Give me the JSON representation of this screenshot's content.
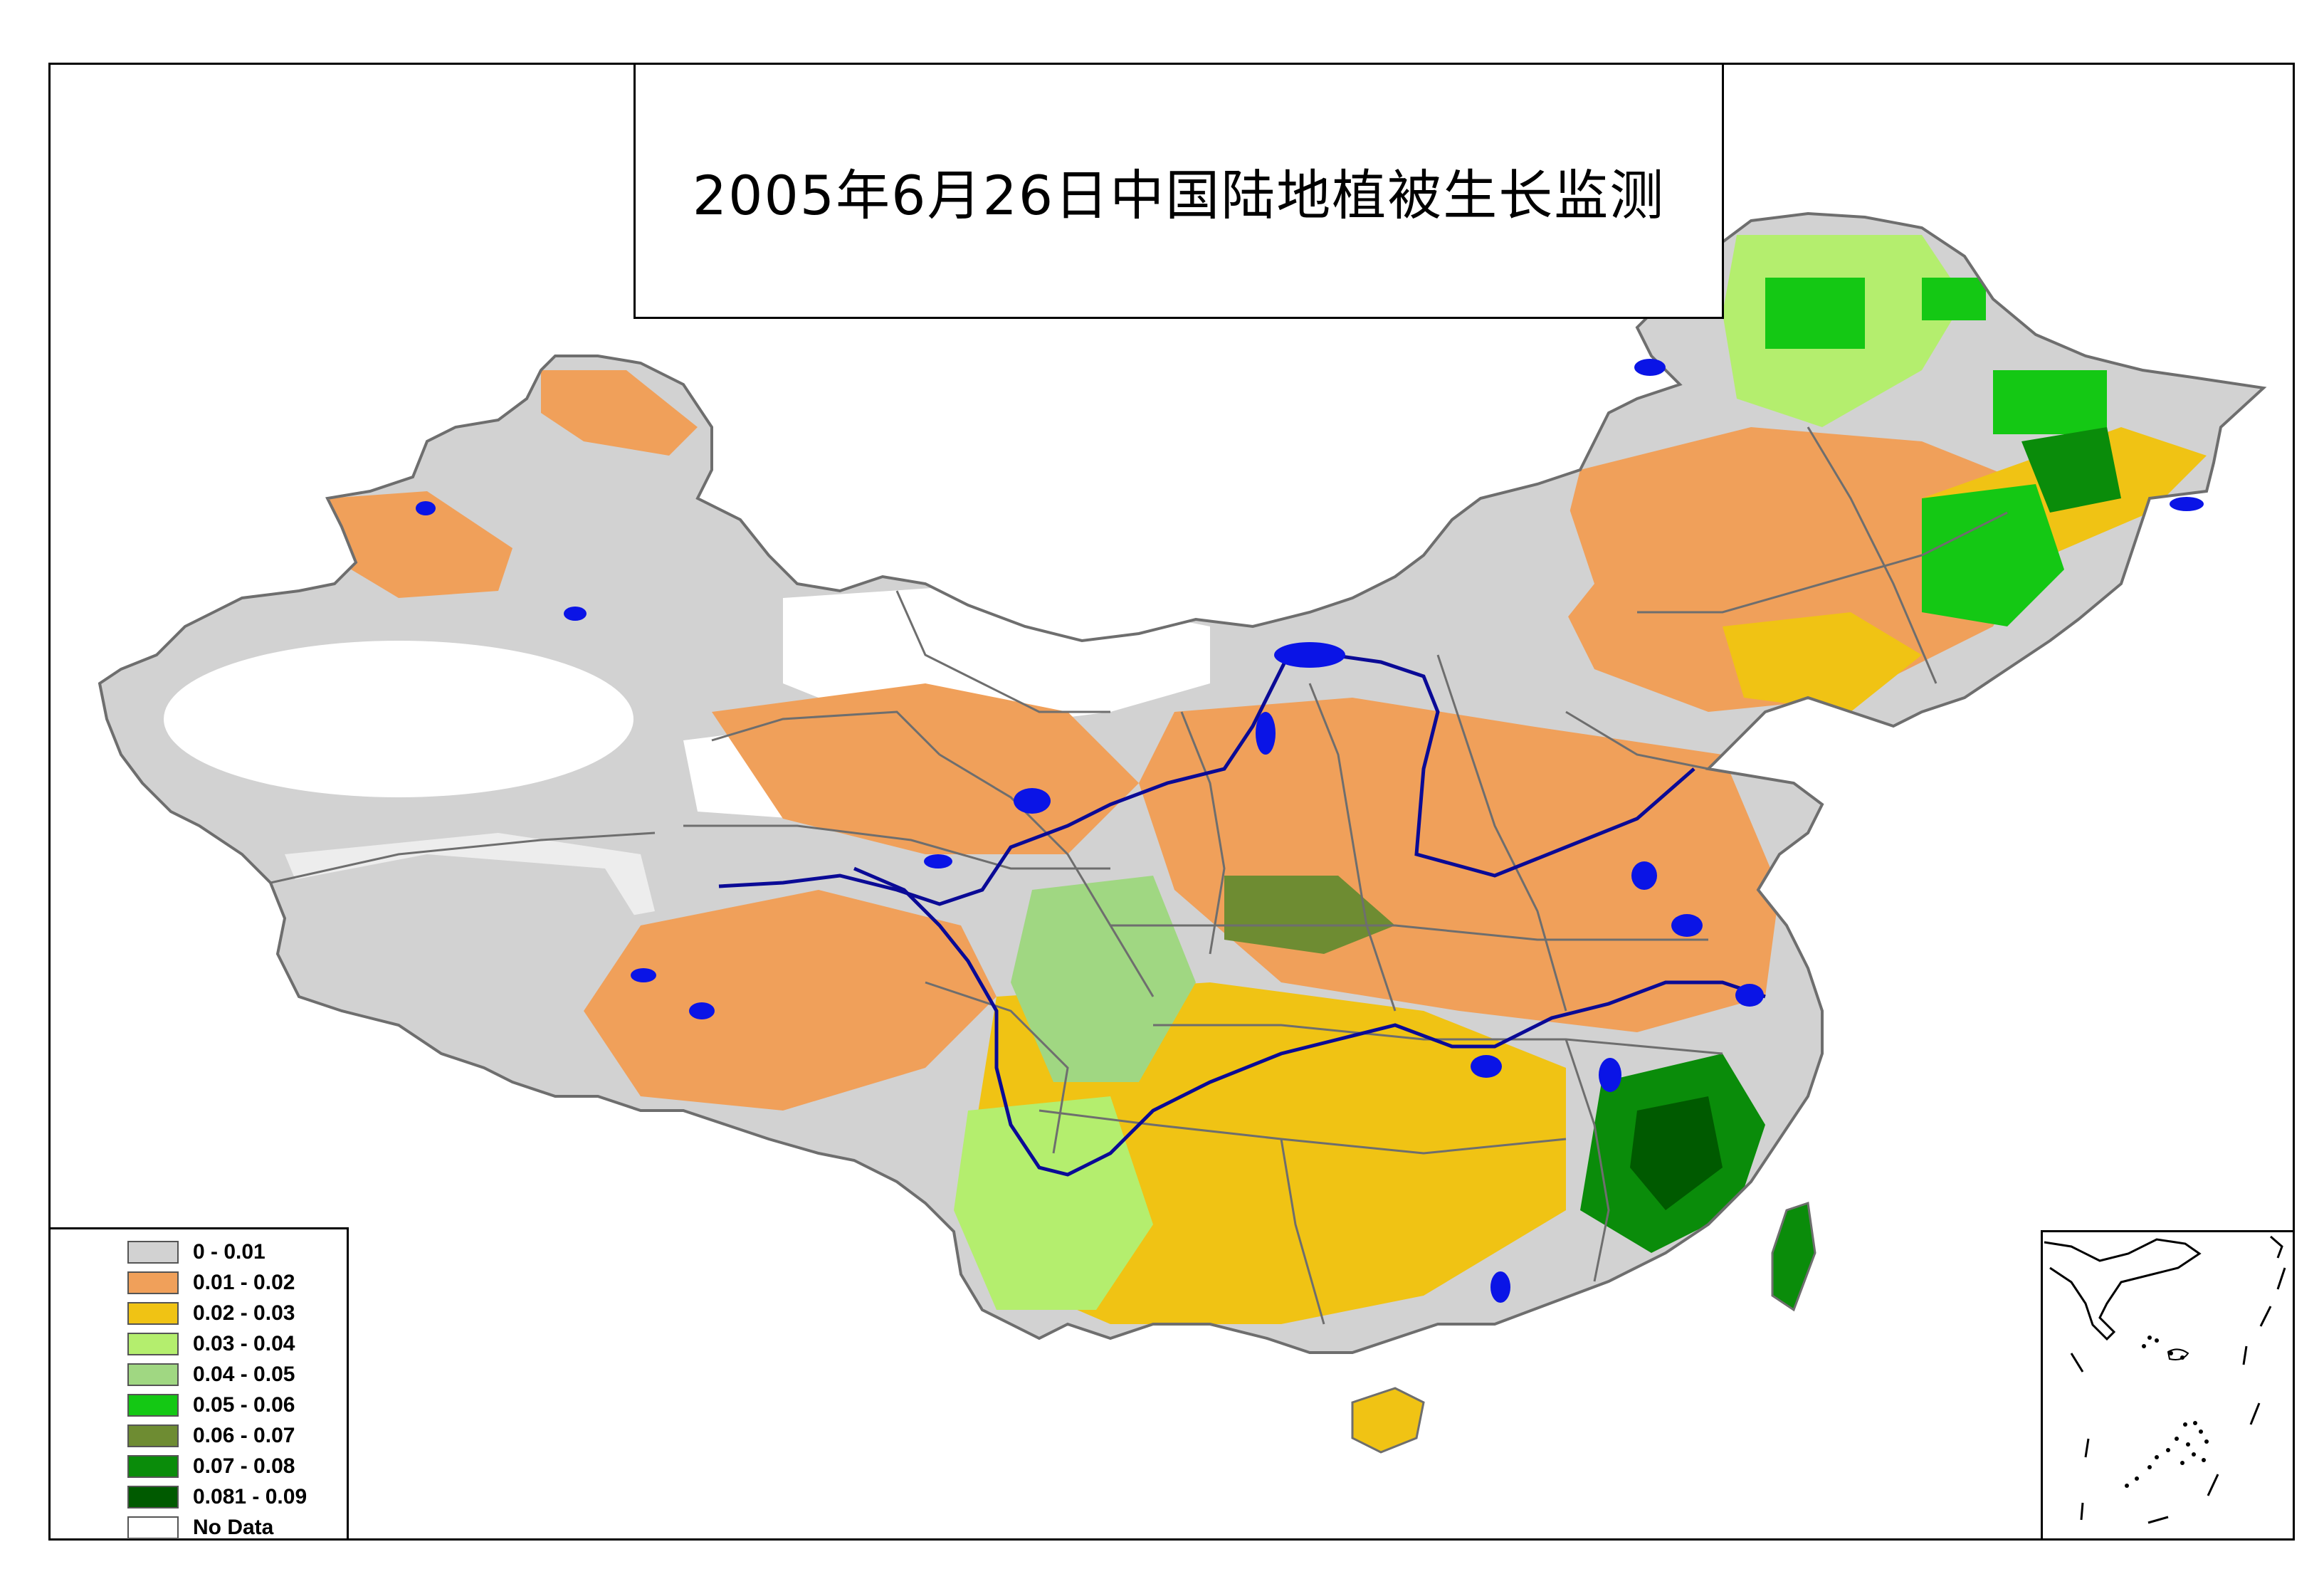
{
  "title": "2005年6月26日中国陆地植被生长监测",
  "colors": {
    "lake": "#0a14e6",
    "river": "#0a0a96",
    "border": "#6e6e6e",
    "no_data": "#ffffff"
  },
  "legend": {
    "items": [
      {
        "label": "0 - 0.01",
        "color": "#d2d2d2"
      },
      {
        "label": "0.01 - 0.02",
        "color": "#f0a05a"
      },
      {
        "label": "0.02 - 0.03",
        "color": "#f0c314"
      },
      {
        "label": "0.03 - 0.04",
        "color": "#b4ee6e"
      },
      {
        "label": "0.04 - 0.05",
        "color": "#a0d782"
      },
      {
        "label": "0.05 - 0.06",
        "color": "#14c814"
      },
      {
        "label": "0.06 - 0.07",
        "color": "#6e8c32"
      },
      {
        "label": "0.07 - 0.08",
        "color": "#0a8c0a"
      },
      {
        "label": "0.081 - 0.09",
        "color": "#005a00"
      },
      {
        "label": "No Data",
        "color": "#ffffff"
      }
    ]
  }
}
